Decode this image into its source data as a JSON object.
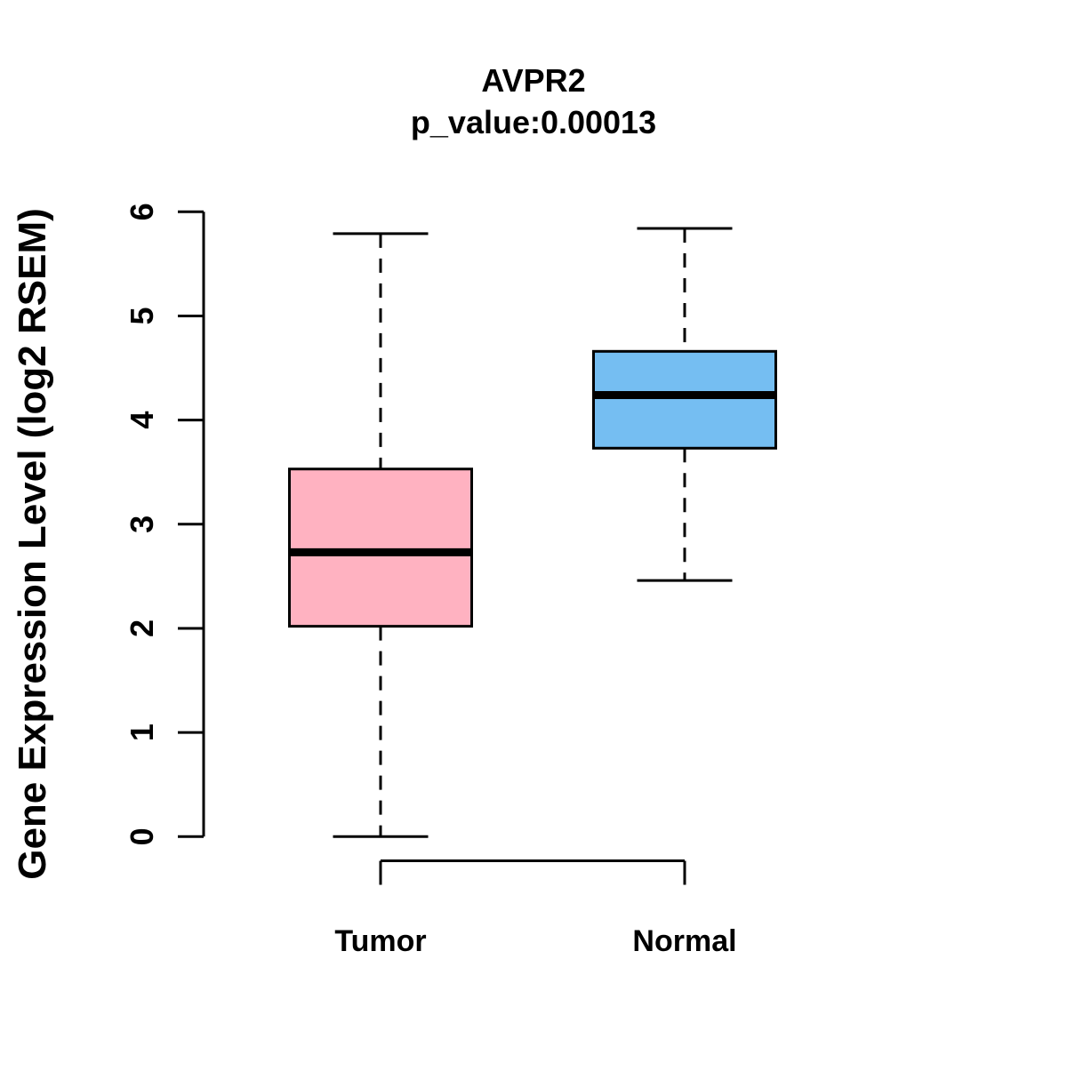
{
  "figure": {
    "background": "#FFFFFF",
    "plot_stroke_color": "#000000"
  },
  "chart_data": {
    "type": "boxplot",
    "title": "AVPR2",
    "subtitle": "p_value:0.00013",
    "ylabel": "Gene Expression Level (log2 RSEM)",
    "xlabel": "",
    "categories": [
      "Tumor",
      "Normal"
    ],
    "ylim": [
      0,
      6
    ],
    "yticks": [
      0,
      1,
      2,
      3,
      4,
      5,
      6
    ],
    "grid": false,
    "legend": "none",
    "series": [
      {
        "name": "Tumor",
        "min": 0.0,
        "q1": 2.02,
        "median": 2.73,
        "q3": 3.53,
        "max": 5.79,
        "fill": "#FFB2C1"
      },
      {
        "name": "Normal",
        "min": 2.46,
        "q1": 3.73,
        "median": 4.24,
        "q3": 4.66,
        "max": 5.84,
        "fill": "#75BEF2"
      }
    ]
  }
}
